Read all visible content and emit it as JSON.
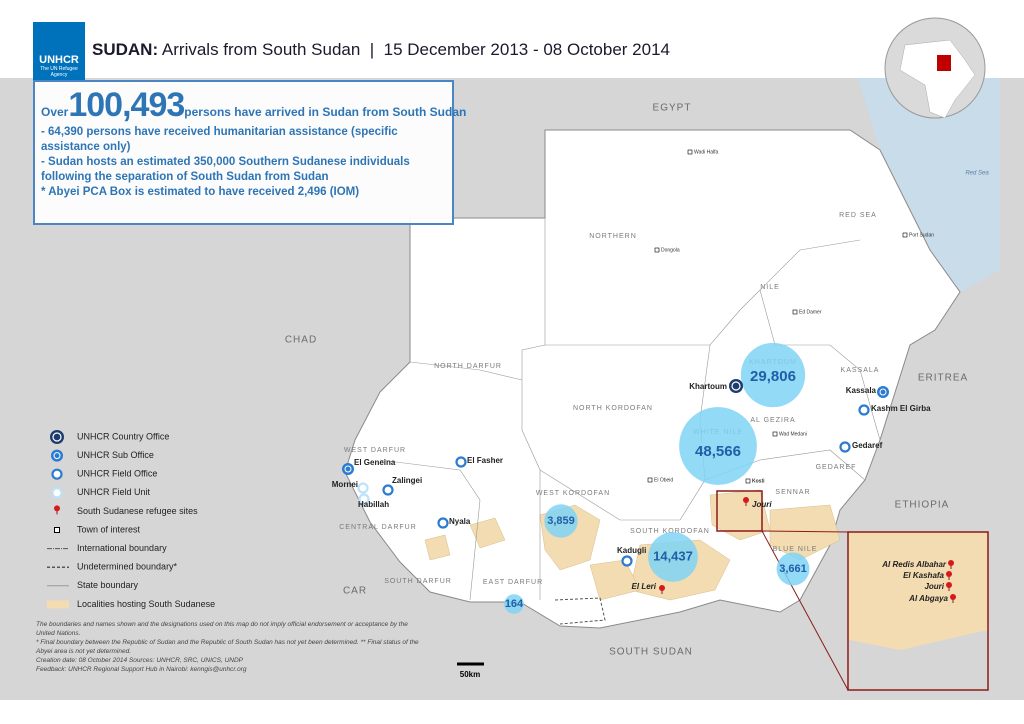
{
  "header": {
    "logo": "UNHCR",
    "logo_tagline": "The UN Refugee Agency",
    "country": "SUDAN:",
    "title": "Arrivals from South Sudan  |  15 December 2013 - 08 October 2014"
  },
  "summary": {
    "over": "Over",
    "total": "100,493",
    "total_text": "persons have arrived in Sudan from South Sudan",
    "notes": [
      "- 64,390 persons have received humanitarian assistance (specific assistance only)",
      "- Sudan hosts an estimated 350,000 Southern Sudanese individuals following the separation of South Sudan from Sudan",
      "* Abyei PCA Box is estimated to have received 2,496 (IOM)"
    ]
  },
  "countries": [
    "EGYPT",
    "CHAD",
    "ERITREA",
    "ETHIOPIA",
    "CAR",
    "SOUTH SUDAN"
  ],
  "sea": "Red Sea",
  "states": [
    "NORTHERN",
    "RED SEA",
    "NILE",
    "KHARTOUM",
    "NORTH DARFUR",
    "NORTH KORDOFAN",
    "KASSALA",
    "AL GEZIRA",
    "GEDAREF",
    "SENNAR",
    "WEST DARFUR",
    "CENTRAL DARFUR",
    "SOUTH DARFUR",
    "EAST DARFUR",
    "WEST KORDOFAN",
    "SOUTH KORDOFAN",
    "BLUE NILE",
    "WHITE NILE"
  ],
  "arrivals": [
    {
      "value": 29806,
      "label": "29,806"
    },
    {
      "value": 48566,
      "label": "48,566"
    },
    {
      "value": 14437,
      "label": "14,437"
    },
    {
      "value": 3859,
      "label": "3,859"
    },
    {
      "value": 3661,
      "label": "3,661"
    },
    {
      "value": 164,
      "label": "164"
    }
  ],
  "offices": [
    "Khartoum",
    "Kassala",
    "Kashm El Girba",
    "Gedaref",
    "El Fasher",
    "El Geneina",
    "Mornei",
    "Zalingei",
    "Habillah",
    "Nyala",
    "Kadugli"
  ],
  "sites": [
    "El Leri",
    "Jouri"
  ],
  "towns": [
    "Wadi Halfa",
    "Dongola",
    "Port Sudan",
    "Ed Damer",
    "Wad Medani",
    "El Obeid",
    "Kosti"
  ],
  "inset": {
    "sites": [
      "Al Redis Albahar",
      "El Kashafa",
      "Jouri",
      "Al Abgaya"
    ]
  },
  "legend": [
    "UNHCR Country Office",
    "UNHCR Sub Office",
    "UNHCR Field Office",
    "UNHCR Field Unit",
    "South Sudanese refugee sites",
    "Town of interest",
    "International boundary",
    "Undetermined boundary*",
    "State boundary",
    "Localities hosting South Sudanese"
  ],
  "disclaimer": [
    "The boundaries and names shown and the designations used on this map do not imply official endorsement or acceptance by the United Nations.",
    "* Final boundary between the Republic of Sudan and the Republic of South Sudan has not yet been determined. ** Final status of the Abyei area is not yet determined.",
    "Creation date: 08 October 2014  Sources: UNHCR, SRC, UNICS, UNDP",
    "Feedback: UNHCR Regional Support Hub in Nairobi: kenngis@unhcr.org"
  ],
  "scale": "50km"
}
